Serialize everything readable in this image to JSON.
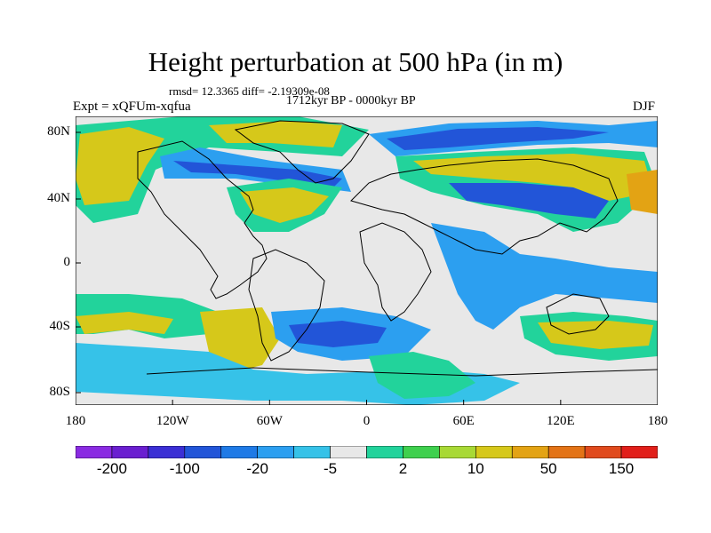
{
  "title": "Height perturbation at 500 hPa (in m)",
  "stats": "rmsd= 12.3365 diff= -2.19309e-08",
  "period": "1712kyr BP - 0000kyr BP",
  "experiment": "Expt = xQFUm-xqfua",
  "season": "DJF",
  "axes": {
    "lat_ticks": [
      "80N",
      "40N",
      "0",
      "40S",
      "80S"
    ],
    "lon_ticks": [
      "180",
      "120W",
      "60W",
      "0",
      "60E",
      "120E",
      "180"
    ]
  },
  "colorbar": {
    "colors": [
      "#8a2be2",
      "#6a1fd0",
      "#3b2fd5",
      "#2255d8",
      "#1f7ae6",
      "#2c9ff0",
      "#36c2e8",
      "#e8e8e8",
      "#22d39b",
      "#3fd04e",
      "#a8d935",
      "#d6c81a",
      "#e3a314",
      "#e37316",
      "#e04a1d",
      "#e11f1a"
    ],
    "labels": [
      "-200",
      "-100",
      "-20",
      "-5",
      "2",
      "10",
      "50",
      "150"
    ]
  },
  "map_colors": {
    "neutral": "#e8e8e8",
    "green": "#22d39b",
    "lightgreen": "#3fd04e",
    "yellow": "#d6c81a",
    "orange": "#e3a314",
    "lightblue": "#36c2e8",
    "blue": "#2c9ff0",
    "darkblue": "#2255d8"
  }
}
